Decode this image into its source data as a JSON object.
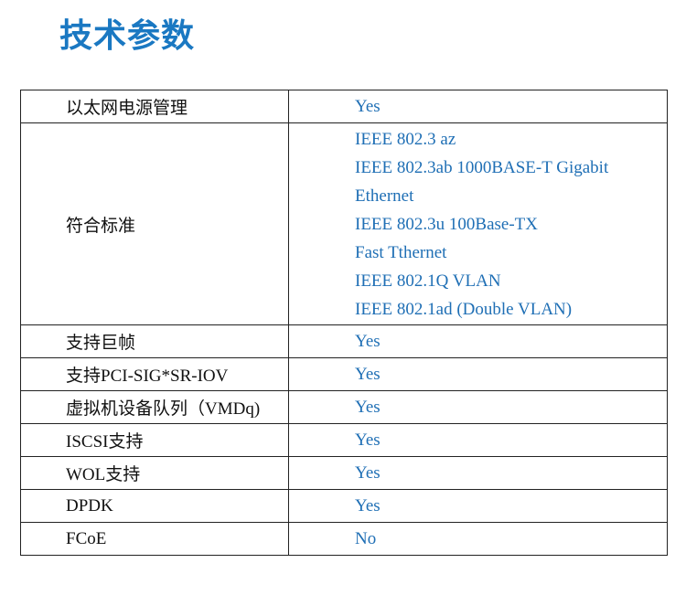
{
  "header": {
    "title": "技术参数"
  },
  "table": {
    "rows": [
      {
        "label": "以太网电源管理",
        "value": [
          "Yes"
        ]
      },
      {
        "label": "符合标准",
        "value": [
          "IEEE 802.3 az",
          "IEEE 802.3ab 1000BASE-T Gigabit",
          "Ethernet",
          "IEEE 802.3u 100Base-TX",
          "Fast Tthernet",
          "IEEE 802.1Q VLAN",
          "IEEE 802.1ad (Double VLAN)"
        ]
      },
      {
        "label": "支持巨帧",
        "value": [
          "Yes"
        ]
      },
      {
        "label": "支持PCI-SIG*SR-IOV",
        "value": [
          "Yes"
        ]
      },
      {
        "label": "虚拟机设备队列（VMDq)",
        "value": [
          "Yes"
        ]
      },
      {
        "label": "ISCSI支持",
        "value": [
          "Yes"
        ]
      },
      {
        "label": "WOL支持",
        "value": [
          "Yes"
        ]
      },
      {
        "label": "DPDK",
        "value": [
          "Yes"
        ]
      },
      {
        "label": "FCoE",
        "value": [
          "No"
        ]
      }
    ]
  }
}
